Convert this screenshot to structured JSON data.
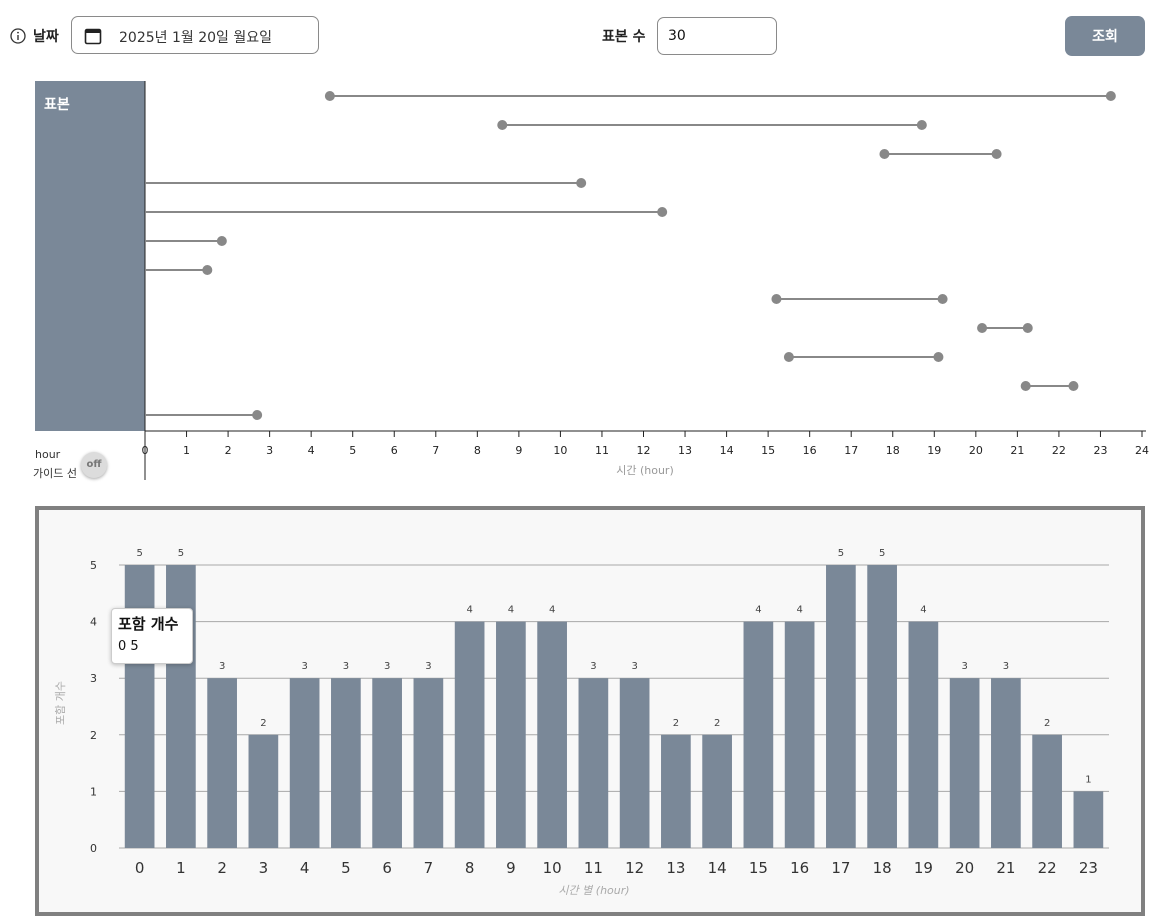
{
  "toolbar": {
    "date_label": "날짜",
    "date_value": "2025년 1월 20일 월요일",
    "sample_label": "표본 수",
    "sample_value": "30",
    "query_label": "조회"
  },
  "timeline": {
    "side_label": "표본",
    "hour_label": "hour",
    "guide_label": "가이드 선",
    "guide_state": "off",
    "axis_title": "시간 (hour)",
    "bar_color": "#7a8898",
    "line_color": "#888888",
    "xlim": [
      0,
      24
    ],
    "intervals": [
      {
        "start": 4.45,
        "end": 23.25
      },
      {
        "start": 8.6,
        "end": 18.7
      },
      {
        "start": 17.8,
        "end": 20.5
      },
      {
        "start": 0,
        "end": 10.5
      },
      {
        "start": 0,
        "end": 12.45
      },
      {
        "start": 0,
        "end": 1.85
      },
      {
        "start": 0,
        "end": 1.5
      },
      {
        "start": 15.2,
        "end": 19.2
      },
      {
        "start": 20.15,
        "end": 21.25
      },
      {
        "start": 15.5,
        "end": 19.1
      },
      {
        "start": 21.2,
        "end": 22.35
      },
      {
        "start": 0,
        "end": 2.7
      }
    ]
  },
  "chart_data": {
    "type": "bar",
    "categories": [
      "0",
      "1",
      "2",
      "3",
      "4",
      "5",
      "6",
      "7",
      "8",
      "9",
      "10",
      "11",
      "12",
      "13",
      "14",
      "15",
      "16",
      "17",
      "18",
      "19",
      "20",
      "21",
      "22",
      "23"
    ],
    "values": [
      5,
      5,
      3,
      2,
      3,
      3,
      3,
      3,
      4,
      4,
      4,
      3,
      3,
      2,
      2,
      4,
      4,
      5,
      5,
      4,
      3,
      3,
      2,
      1
    ],
    "xlabel": "시간 별 (hour)",
    "ylabel": "포함 개수",
    "ylim": [
      0,
      5
    ],
    "yticks": [
      0,
      1,
      2,
      3,
      4,
      5
    ],
    "grid": true,
    "bar_color": "#7a8898",
    "tooltip": {
      "title": "포함 개수",
      "value": "0 5"
    }
  }
}
